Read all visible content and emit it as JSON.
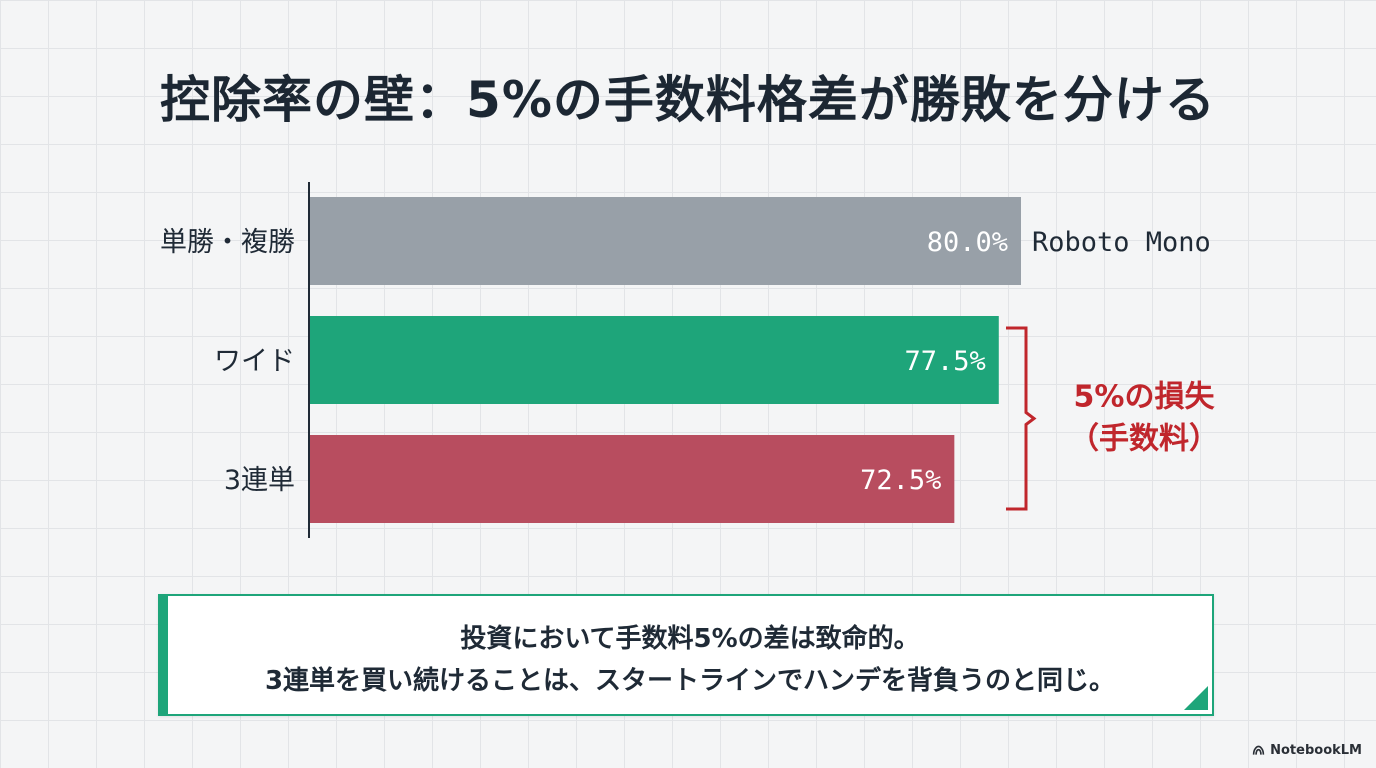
{
  "title": "控除率の壁：5%の手数料格差が勝敗を分ける",
  "chart_data": {
    "type": "bar",
    "orientation": "horizontal",
    "categories": [
      "単勝・複勝",
      "ワイド",
      "3連単"
    ],
    "values": [
      80.0,
      77.5,
      72.5
    ],
    "value_labels": [
      "80.0%",
      "77.5%",
      "72.5%"
    ],
    "bar_colors": [
      "#98a0a8",
      "#1ea57a",
      "#b84d5f"
    ],
    "extra_label": "Roboto Mono",
    "xlim": [
      0,
      80
    ],
    "annotation": {
      "line1": "5%の損失",
      "line2": "（手数料）",
      "color": "#c0262c"
    }
  },
  "callout": {
    "line1": "投資において手数料5%の差は致命的。",
    "line2": "3連単を買い続けることは、スタートラインでハンデを背負うのと同じ。",
    "accent": "#1ea57a"
  },
  "brand": {
    "label": "NotebookLM",
    "icon": "notebooklm-icon"
  }
}
